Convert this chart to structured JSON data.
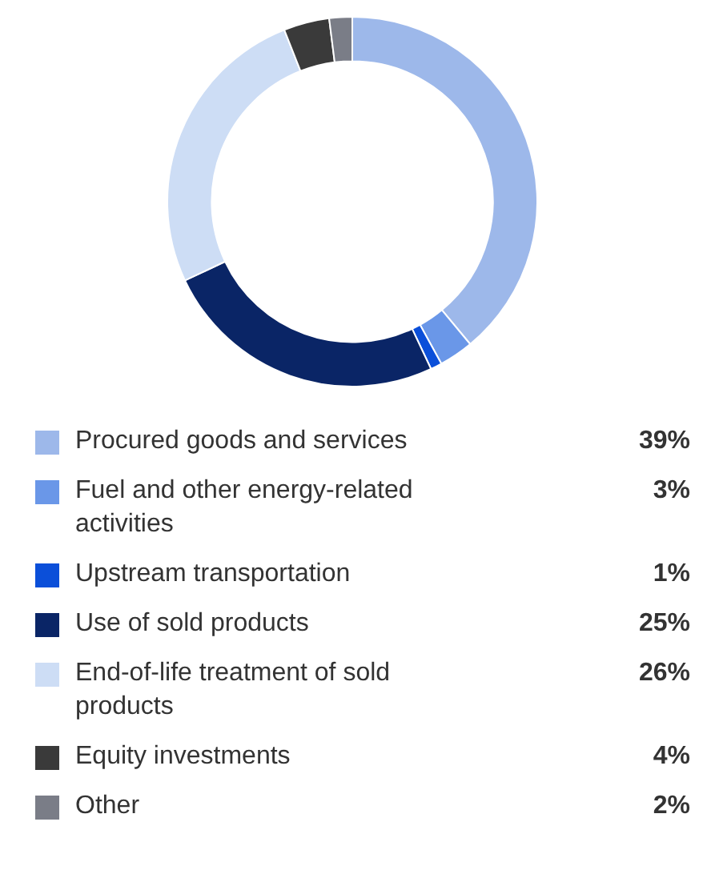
{
  "chart_data": {
    "type": "donut",
    "legend": "bottom",
    "categories": [
      "Procured goods and services",
      "Fuel and other energy-related activities",
      "Upstream transportation",
      "Use of sold products",
      "End-of-life treatment of sold products",
      "Equity investments",
      "Other"
    ],
    "values": [
      39,
      3,
      1,
      25,
      26,
      4,
      2
    ],
    "value_labels": [
      "39%",
      "3%",
      "1%",
      "25%",
      "26%",
      "4%",
      "2%"
    ],
    "colors": [
      "#9db8ea",
      "#6a97e8",
      "#0b4fd9",
      "#0a2566",
      "#cdddf5",
      "#3a3a3a",
      "#7a7d87"
    ]
  }
}
